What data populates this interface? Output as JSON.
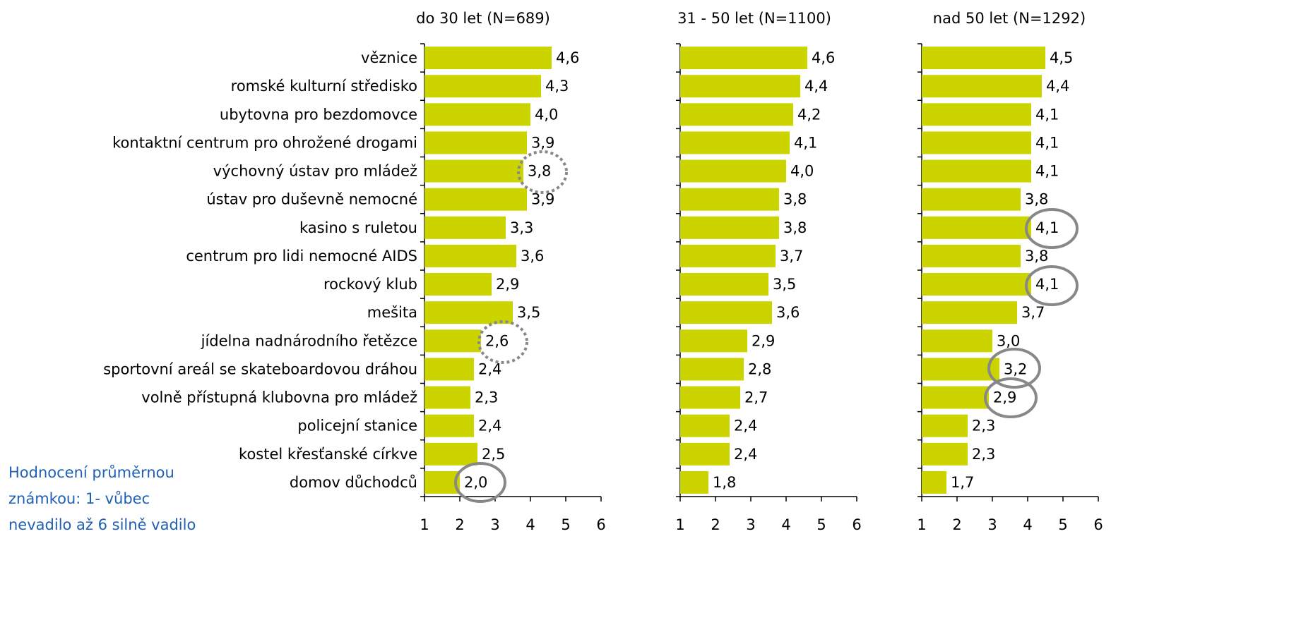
{
  "chart_data": [
    {
      "type": "bar",
      "title": "do 30 let (N=689)",
      "categories": [
        "věznice",
        "romské kulturní středisko",
        "ubytovna pro bezdomovce",
        "kontaktní centrum pro ohrožené drogami",
        "výchovný ústav pro mládež",
        "ústav pro duševně nemocné",
        "kasino s ruletou",
        "centrum pro lidi nemocné AIDS",
        "rockový klub",
        "mešita",
        "jídelna nadnárodního řetězce",
        "sportovní areál se skateboardovou dráhou",
        "volně přístupná klubovna pro mládež",
        "policejní stanice",
        "kostel křesťanské církve",
        "domov důchodců"
      ],
      "values": [
        4.6,
        4.3,
        4.0,
        3.9,
        3.8,
        3.9,
        3.3,
        3.6,
        2.9,
        3.5,
        2.6,
        2.4,
        2.3,
        2.4,
        2.5,
        2.0
      ],
      "value_labels": [
        "4,6",
        "4,3",
        "4,0",
        "3,9",
        "3,8",
        "3,9",
        "3,3",
        "3,6",
        "2,9",
        "3,5",
        "2,6",
        "2,4",
        "2,3",
        "2,4",
        "2,5",
        "2,0"
      ],
      "color": "#ccd400",
      "xlim": [
        1,
        6
      ],
      "xticks": [
        1,
        2,
        3,
        4,
        5,
        6
      ]
    },
    {
      "type": "bar",
      "title": "31 - 50 let (N=1100)",
      "values": [
        4.6,
        4.4,
        4.2,
        4.1,
        4.0,
        3.8,
        3.8,
        3.7,
        3.5,
        3.6,
        2.9,
        2.8,
        2.7,
        2.4,
        2.4,
        1.8
      ],
      "value_labels": [
        "4,6",
        "4,4",
        "4,2",
        "4,1",
        "4,0",
        "3,8",
        "3,8",
        "3,7",
        "3,5",
        "3,6",
        "2,9",
        "2,8",
        "2,7",
        "2,4",
        "2,4",
        "1,8"
      ],
      "color": "#ccd400",
      "xlim": [
        1,
        6
      ],
      "xticks": [
        1,
        2,
        3,
        4,
        5,
        6
      ]
    },
    {
      "type": "bar",
      "title": "nad 50 let (N=1292)",
      "values": [
        4.5,
        4.4,
        4.1,
        4.1,
        4.1,
        3.8,
        4.1,
        3.8,
        4.1,
        3.7,
        3.0,
        3.2,
        2.9,
        2.3,
        2.3,
        1.7
      ],
      "value_labels": [
        "4,5",
        "4,4",
        "4,1",
        "4,1",
        "4,1",
        "3,8",
        "4,1",
        "3,8",
        "4,1",
        "3,7",
        "3,0",
        "3,2",
        "2,9",
        "2,3",
        "2,3",
        "1,7"
      ],
      "color": "#ccd400",
      "xlim": [
        1,
        6
      ],
      "xticks": [
        1,
        2,
        3,
        4,
        5,
        6
      ]
    }
  ],
  "note": [
    "Hodnocení průměrnou",
    "známkou: 1- vůbec",
    "nevadilo až 6 silně vadilo"
  ]
}
